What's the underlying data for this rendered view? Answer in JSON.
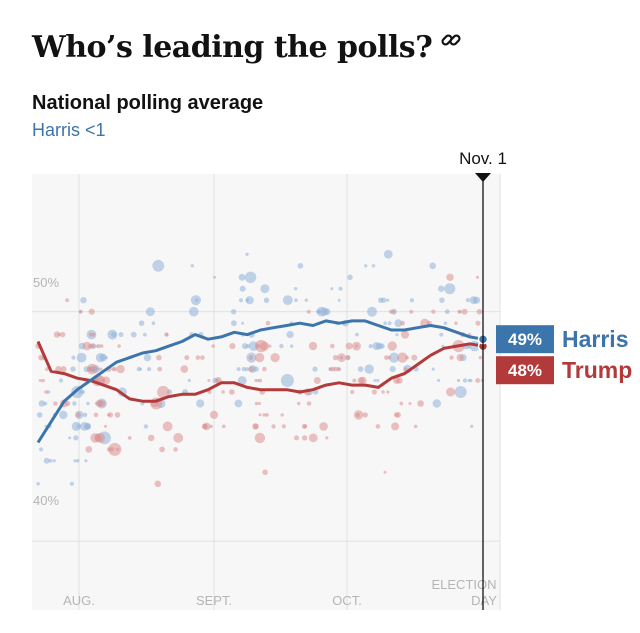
{
  "header": {
    "headline": "Who’s leading the polls?",
    "link_icon": "link-icon"
  },
  "chart_data": {
    "type": "line",
    "title": "National polling average",
    "leader_text": "Harris <1",
    "x_tick_labels": [
      "AUG.",
      "SEPT.",
      "OCT."
    ],
    "end_label_lines": [
      "ELECTION",
      "DAY"
    ],
    "marker_label": "Nov. 1",
    "y_tick_labels": [
      "50%",
      "40%"
    ],
    "ylim": [
      37,
      56
    ],
    "grid": true,
    "x": [
      "Jul 22",
      "Jul 25",
      "Jul 28",
      "Jul 31",
      "Aug 3",
      "Aug 6",
      "Aug 9",
      "Aug 12",
      "Aug 15",
      "Aug 18",
      "Aug 21",
      "Aug 24",
      "Aug 27",
      "Aug 30",
      "Sep 2",
      "Sep 5",
      "Sep 8",
      "Sep 11",
      "Sep 14",
      "Sep 17",
      "Sep 20",
      "Sep 23",
      "Sep 26",
      "Sep 29",
      "Oct 2",
      "Oct 5",
      "Oct 8",
      "Oct 11",
      "Oct 14",
      "Oct 17",
      "Oct 20",
      "Oct 23",
      "Oct 26",
      "Oct 29",
      "Nov 1"
    ],
    "series": [
      {
        "name": "Harris",
        "color": "#3c74ac",
        "end_value_label": "49%",
        "values": [
          44.3,
          45.2,
          46.1,
          46.6,
          47.0,
          47.4,
          47.8,
          48.0,
          48.2,
          48.3,
          48.5,
          48.7,
          49.0,
          48.8,
          48.9,
          49.1,
          49.0,
          49.2,
          49.3,
          49.4,
          49.5,
          49.4,
          49.6,
          49.5,
          49.6,
          49.6,
          49.4,
          49.2,
          49.2,
          49.3,
          49.4,
          49.3,
          49.1,
          48.9,
          48.8
        ]
      },
      {
        "name": "Trump",
        "color": "#b33a3a",
        "end_value_label": "48%",
        "values": [
          48.7,
          47.4,
          47.3,
          47.1,
          47.0,
          46.8,
          46.6,
          46.2,
          46.1,
          46.1,
          46.3,
          46.4,
          46.4,
          46.6,
          46.9,
          46.9,
          46.7,
          46.6,
          46.6,
          46.6,
          46.5,
          46.6,
          46.8,
          46.9,
          46.8,
          46.8,
          46.7,
          47.1,
          47.3,
          47.7,
          48.1,
          48.4,
          48.5,
          48.6,
          48.5
        ]
      }
    ],
    "poll_colors": {
      "harris": "#8fb2d8",
      "trump": "#dd8f8f"
    }
  }
}
